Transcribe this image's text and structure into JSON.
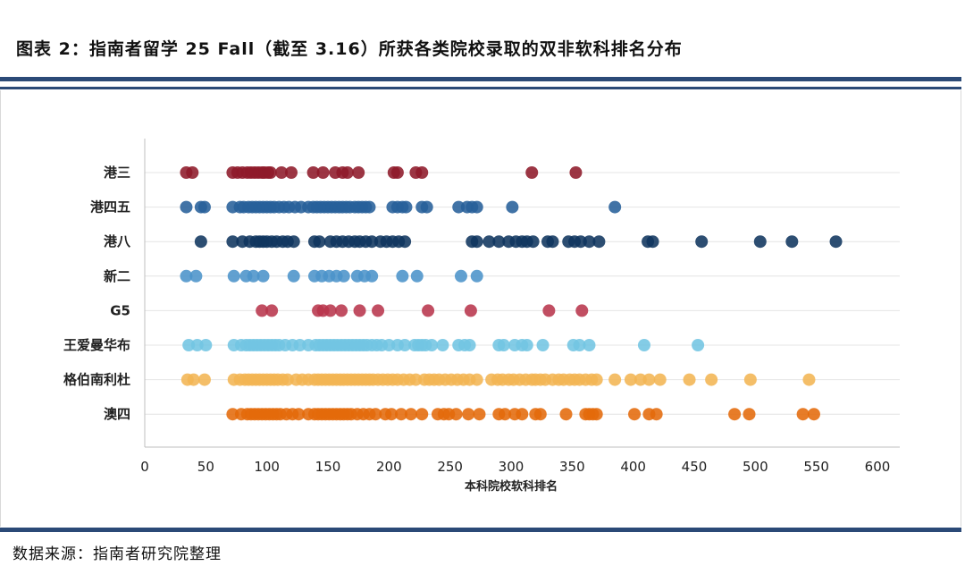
{
  "header": {
    "title": "图表 2：指南者留学 25 Fall（截至 3.16）所获各类院校录取的双非软科排名分布"
  },
  "footer": {
    "source": "数据来源：指南者研究院整理"
  },
  "colors": {
    "rule": "#2b4a77",
    "港三": "#8e1a2a",
    "港四五": "#27609a",
    "港八": "#10365e",
    "新二": "#4b93c9",
    "G5": "#b8354c",
    "王爱曼华布": "#72c5e3",
    "格伯南利杜": "#f3b553",
    "澳四": "#e46a0a"
  },
  "chart_data": {
    "type": "scatter",
    "title": "",
    "xlabel": "本科院校软科排名",
    "ylabel": "",
    "xlim": [
      0,
      600
    ],
    "xticks": [
      0,
      50,
      100,
      150,
      200,
      250,
      300,
      350,
      400,
      450,
      500,
      550,
      600
    ],
    "grid": "horizontal",
    "legend": "none",
    "categories": [
      "港三",
      "港四五",
      "港八",
      "新二",
      "G5",
      "王爱曼华布",
      "格伯南利杜",
      "澳四"
    ],
    "series": [
      {
        "name": "港三",
        "x": [
          34,
          39,
          72,
          76,
          80,
          84,
          87,
          90,
          93,
          96,
          98,
          101,
          103,
          112,
          120,
          138,
          146,
          156,
          162,
          166,
          175,
          204,
          207,
          222,
          227,
          317,
          353
        ]
      },
      {
        "name": "港四五",
        "x": [
          34,
          46,
          49,
          72,
          78,
          81,
          85,
          88,
          91,
          94,
          97,
          100,
          103,
          106,
          110,
          114,
          118,
          123,
          128,
          134,
          138,
          141,
          144,
          147,
          150,
          153,
          156,
          159,
          162,
          165,
          168,
          172,
          175,
          178,
          181,
          184,
          203,
          207,
          211,
          214,
          227,
          231,
          257,
          264,
          268,
          272,
          301,
          385
        ]
      },
      {
        "name": "港八",
        "x": [
          46,
          72,
          80,
          86,
          91,
          94,
          97,
          100,
          104,
          108,
          113,
          117,
          122,
          139,
          143,
          152,
          157,
          162,
          167,
          172,
          176,
          181,
          186,
          193,
          198,
          203,
          208,
          213,
          268,
          272,
          282,
          290,
          298,
          304,
          309,
          313,
          318,
          330,
          334,
          347,
          352,
          357,
          364,
          372,
          412,
          416,
          456,
          504,
          530,
          566
        ]
      },
      {
        "name": "新二",
        "x": [
          34,
          42,
          73,
          83,
          89,
          97,
          122,
          139,
          145,
          151,
          157,
          163,
          174,
          180,
          186,
          211,
          223,
          259,
          272
        ]
      },
      {
        "name": "G5",
        "x": [
          96,
          104,
          142,
          146,
          152,
          161,
          176,
          191,
          232,
          267,
          331,
          358
        ]
      },
      {
        "name": "王爱曼华布",
        "x": [
          36,
          43,
          50,
          73,
          79,
          83,
          86,
          89,
          92,
          95,
          98,
          101,
          104,
          107,
          110,
          115,
          121,
          127,
          134,
          140,
          143,
          146,
          149,
          152,
          155,
          158,
          161,
          164,
          167,
          170,
          173,
          176,
          179,
          182,
          186,
          190,
          194,
          200,
          207,
          213,
          221,
          224,
          227,
          230,
          235,
          244,
          257,
          262,
          266,
          290,
          294,
          303,
          309,
          313,
          326,
          351,
          356,
          364,
          409,
          453
        ]
      },
      {
        "name": "格伯南利杜",
        "x": [
          35,
          40,
          49,
          73,
          78,
          82,
          85,
          88,
          91,
          94,
          97,
          100,
          103,
          106,
          109,
          113,
          117,
          124,
          129,
          134,
          139,
          142,
          145,
          148,
          151,
          154,
          157,
          160,
          163,
          166,
          169,
          172,
          175,
          178,
          181,
          184,
          187,
          191,
          195,
          199,
          203,
          207,
          212,
          217,
          222,
          229,
          233,
          237,
          241,
          246,
          251,
          256,
          261,
          266,
          272,
          284,
          289,
          293,
          298,
          302,
          307,
          312,
          317,
          320,
          324,
          328,
          334,
          339,
          343,
          348,
          352,
          356,
          361,
          366,
          370,
          385,
          398,
          406,
          413,
          422,
          446,
          464,
          496,
          544
        ]
      },
      {
        "name": "澳四",
        "x": [
          72,
          79,
          84,
          87,
          90,
          93,
          96,
          99,
          102,
          105,
          108,
          111,
          116,
          121,
          126,
          134,
          139,
          142,
          145,
          148,
          151,
          154,
          157,
          160,
          163,
          166,
          169,
          174,
          179,
          184,
          189,
          197,
          202,
          210,
          218,
          227,
          240,
          245,
          249,
          255,
          265,
          274,
          290,
          295,
          303,
          309,
          320,
          324,
          345,
          361,
          364,
          367,
          370,
          401,
          413,
          419,
          483,
          495,
          539,
          548
        ]
      }
    ]
  }
}
